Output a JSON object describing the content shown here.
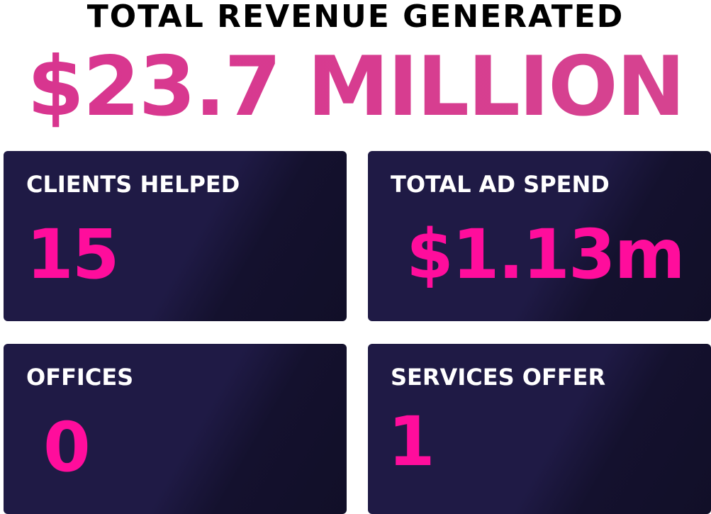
{
  "header": {
    "title": "TOTAL REVENUE GENERATED",
    "headline": "$23.7 MILLION"
  },
  "cards": [
    {
      "label": "CLIENTS HELPED",
      "value": "15"
    },
    {
      "label": "TOTAL AD SPEND",
      "value": "$1.13m"
    },
    {
      "label": "OFFICES",
      "value": "0"
    },
    {
      "label": "SERVICES OFFER",
      "value": "1"
    }
  ]
}
